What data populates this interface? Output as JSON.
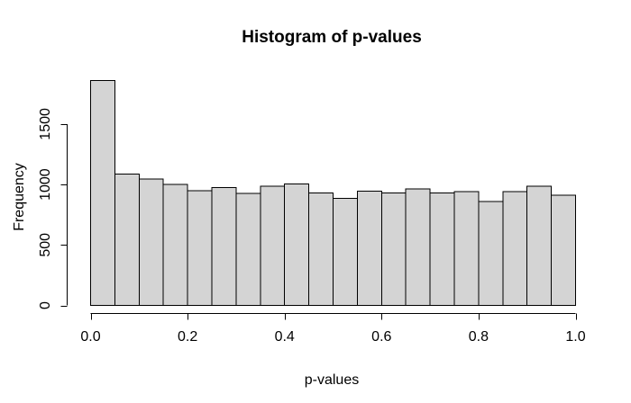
{
  "chart_data": {
    "type": "bar",
    "subtype": "histogram",
    "title": "Histogram of p-values",
    "xlabel": "p-values",
    "ylabel": "Frequency",
    "breaks": [
      0,
      0.05,
      0.1,
      0.15,
      0.2,
      0.25,
      0.3,
      0.35,
      0.4,
      0.45,
      0.5,
      0.55,
      0.6,
      0.65,
      0.7,
      0.75,
      0.8,
      0.85,
      0.9,
      0.95,
      1.0
    ],
    "values": [
      1860,
      1085,
      1045,
      1000,
      950,
      975,
      925,
      985,
      1005,
      930,
      885,
      945,
      930,
      965,
      930,
      940,
      860,
      940,
      985,
      910
    ],
    "xlim": [
      0,
      1
    ],
    "ylim": [
      0,
      1860
    ],
    "xticks": {
      "values": [
        0.0,
        0.2,
        0.4,
        0.6,
        0.8,
        1.0
      ],
      "labels": [
        "0.0",
        "0.2",
        "0.4",
        "0.6",
        "0.8",
        "1.0"
      ]
    },
    "yticks": {
      "values": [
        0,
        500,
        1000,
        1500
      ],
      "labels": [
        "0",
        "500",
        "1000",
        "1500"
      ]
    },
    "grid": false,
    "legend": false,
    "colors": {
      "bar_fill": "#d4d4d4",
      "bar_stroke": "#000000",
      "axis": "#000000",
      "text": "#000000",
      "background": "#ffffff"
    }
  }
}
